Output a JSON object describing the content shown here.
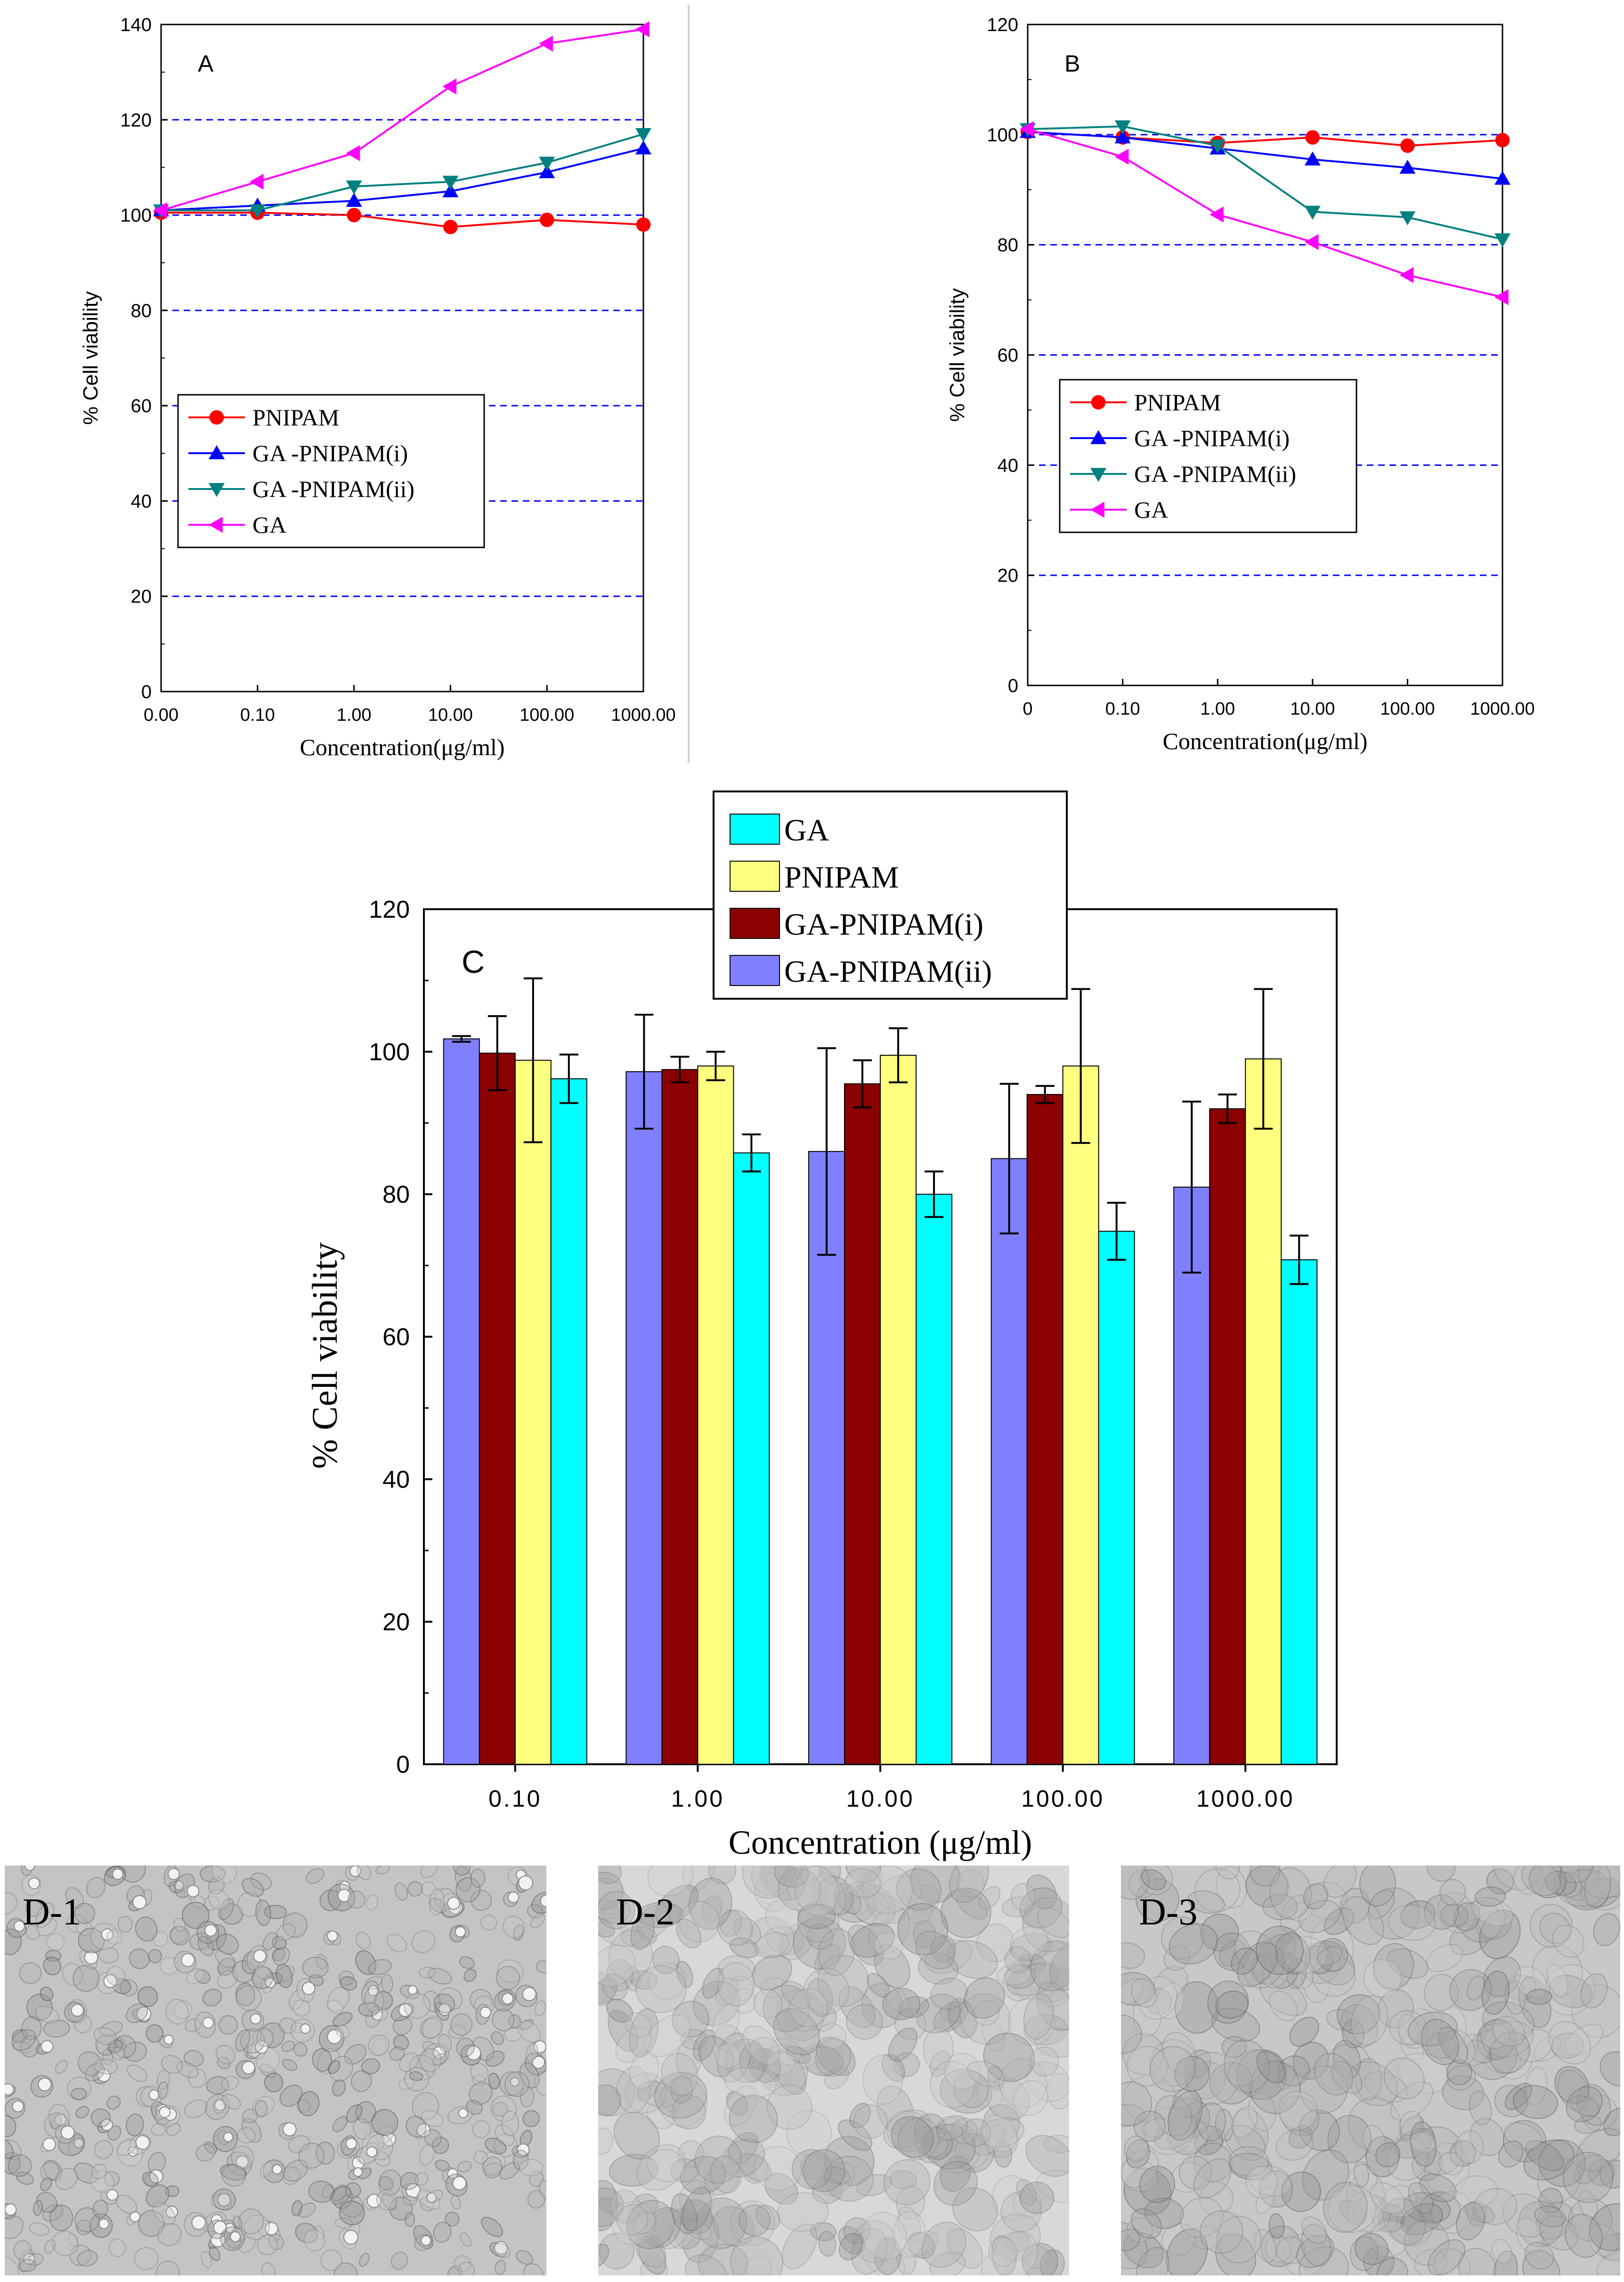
{
  "figure": {
    "separator_color": "#d0d0d0"
  },
  "chart_data": [
    {
      "id": "A",
      "type": "line",
      "panel_label": "A",
      "title": "",
      "xlabel": "Concentration(μg/ml)",
      "ylabel": "% Cell viability",
      "categories": [
        "0.00",
        "0.10",
        "1.00",
        "10.00",
        "100.00",
        "1000.00"
      ],
      "ylim": [
        0,
        140
      ],
      "yticks": [
        "0",
        "20",
        "40",
        "60",
        "80",
        "100",
        "120",
        "140"
      ],
      "grid_lines": [
        20,
        40,
        60,
        80,
        100,
        120
      ],
      "legend_position": "lower-left",
      "series": [
        {
          "name": "PNIPAM",
          "color": "#ff0000",
          "marker": "circle",
          "values": [
            100.5,
            100.5,
            100,
            97.5,
            99,
            98
          ]
        },
        {
          "name": "GA -PNIPAM(i)",
          "color": "#0000ff",
          "marker": "triangle-up",
          "values": [
            101,
            102,
            103,
            105,
            109,
            114
          ]
        },
        {
          "name": "GA -PNIPAM(ii)",
          "color": "#008080",
          "marker": "triangle-down",
          "values": [
            101,
            101,
            106,
            107,
            111,
            117
          ]
        },
        {
          "name": "GA",
          "color": "#ff00ff",
          "marker": "triangle-left",
          "values": [
            101,
            107,
            113,
            127,
            136,
            139
          ]
        }
      ]
    },
    {
      "id": "B",
      "type": "line",
      "panel_label": "B",
      "title": "",
      "xlabel": "Concentration(μg/ml)",
      "ylabel": "% Cell viability",
      "categories": [
        "0",
        "0.10",
        "1.00",
        "10.00",
        "100.00",
        "1000.00"
      ],
      "ylim": [
        0,
        120
      ],
      "yticks": [
        "0",
        "20",
        "40",
        "60",
        "80",
        "100",
        "120"
      ],
      "grid_lines": [
        20,
        40,
        60,
        80,
        100
      ],
      "legend_position": "lower-left",
      "series": [
        {
          "name": "PNIPAM",
          "color": "#ff0000",
          "marker": "circle",
          "values": [
            100.5,
            99.5,
            98.5,
            99.5,
            98,
            99
          ]
        },
        {
          "name": "GA -PNIPAM(i)",
          "color": "#0000ff",
          "marker": "triangle-up",
          "values": [
            100.5,
            99.5,
            97.5,
            95.5,
            94,
            92
          ]
        },
        {
          "name": "GA -PNIPAM(ii)",
          "color": "#008080",
          "marker": "triangle-down",
          "values": [
            101,
            101.5,
            98,
            86,
            85,
            81
          ]
        },
        {
          "name": "GA",
          "color": "#ff00ff",
          "marker": "triangle-left",
          "values": [
            101,
            96,
            85.5,
            80.5,
            74.5,
            70.5
          ]
        }
      ]
    },
    {
      "id": "C",
      "type": "bar",
      "panel_label": "C",
      "title": "",
      "xlabel": "Concentration (μg/ml)",
      "ylabel": "% Cell viability",
      "categories": [
        "0.10",
        "1.00",
        "10.00",
        "100.00",
        "1000.00"
      ],
      "ylim": [
        0,
        120
      ],
      "yticks": [
        "0",
        "20",
        "40",
        "60",
        "80",
        "100",
        "120"
      ],
      "legend_position": "top-center",
      "series": [
        {
          "name": "GA-PNIPAM(ii)",
          "color": "#8080ff",
          "values": [
            101.8,
            97.2,
            86,
            85,
            81
          ],
          "errors": [
            0.4,
            8,
            14.5,
            10.5,
            12
          ]
        },
        {
          "name": "GA-PNIPAM(i)",
          "color": "#8b0000",
          "values": [
            99.8,
            97.5,
            95.5,
            94,
            92
          ],
          "errors": [
            5.2,
            1.8,
            3.3,
            1.2,
            2
          ]
        },
        {
          "name": "PNIPAM",
          "color": "#ffff80",
          "values": [
            98.8,
            98,
            99.5,
            98,
            99
          ],
          "errors": [
            11.5,
            2,
            3.8,
            10.8,
            9.8
          ]
        },
        {
          "name": "GA",
          "color": "#00ffff",
          "values": [
            96.2,
            85.8,
            80,
            74.8,
            70.8
          ],
          "errors": [
            3.4,
            2.6,
            3.2,
            4,
            3.4
          ]
        }
      ],
      "legend_order": [
        "GA",
        "PNIPAM",
        "GA-PNIPAM(i)",
        "GA-PNIPAM(ii)"
      ]
    }
  ],
  "micrographs": [
    {
      "label": "D-1"
    },
    {
      "label": "D-2"
    },
    {
      "label": "D-3"
    }
  ]
}
